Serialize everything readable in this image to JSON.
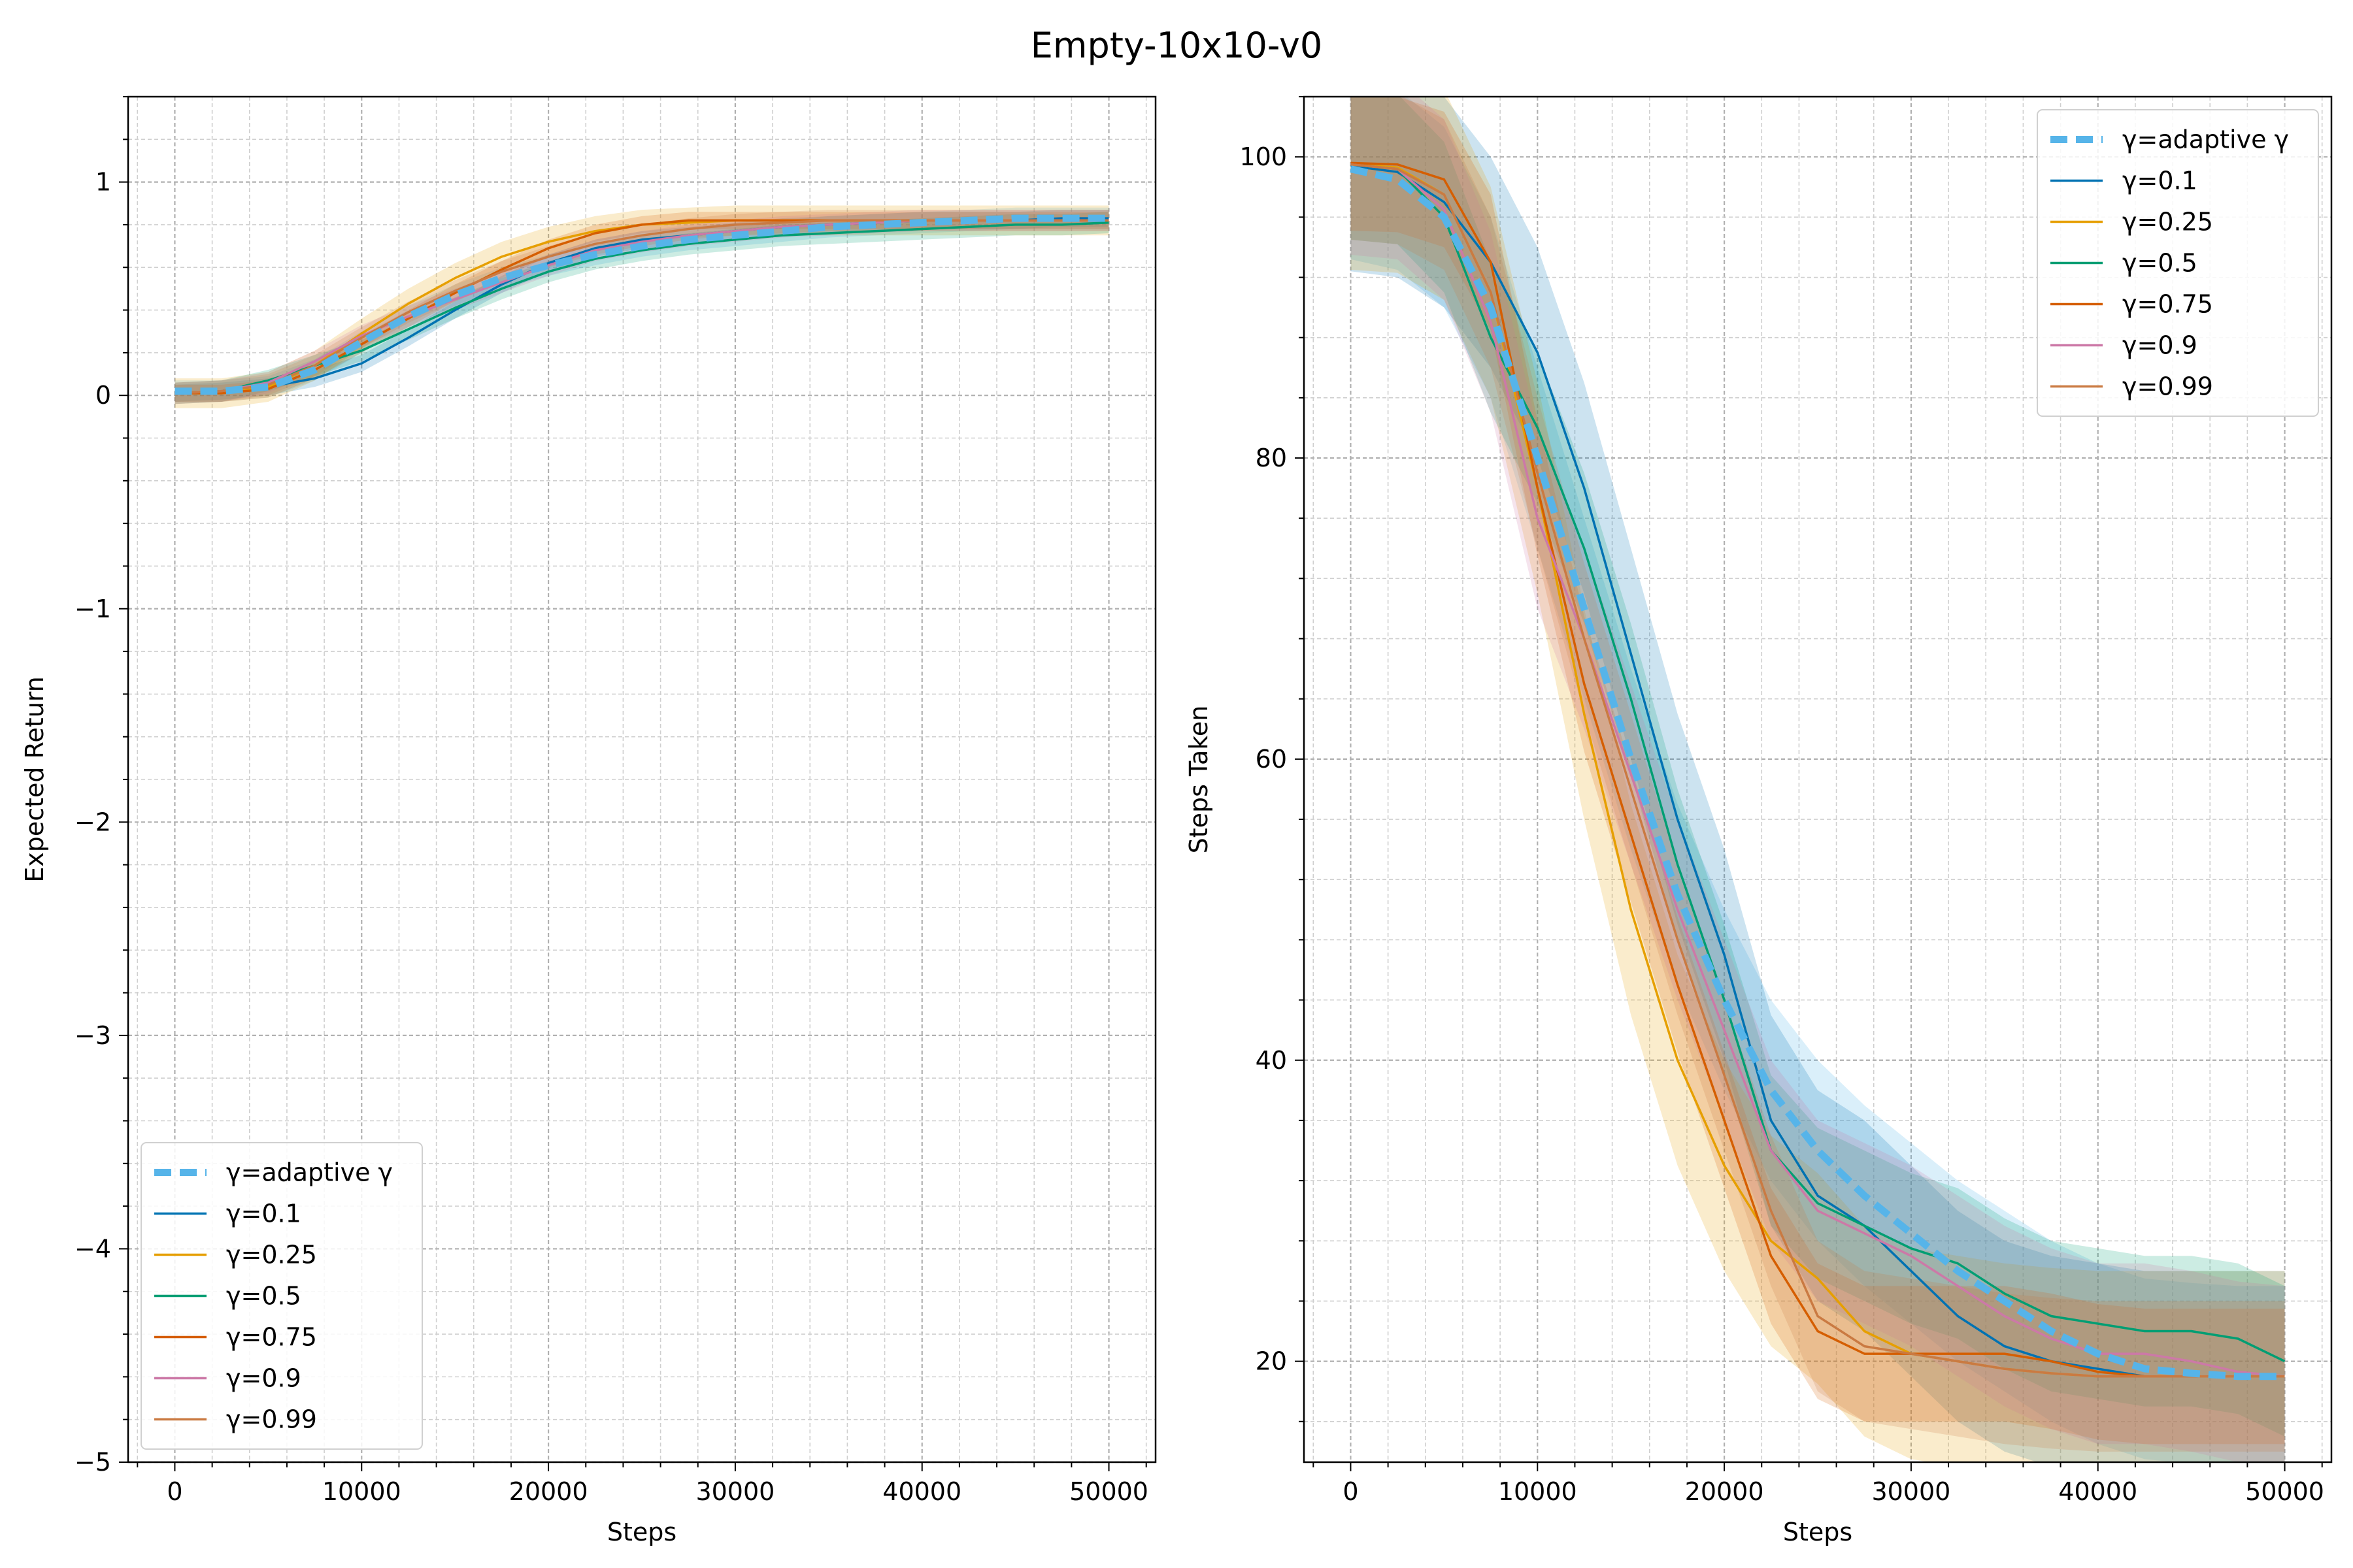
{
  "figure": {
    "title": "Empty-10x10-v0"
  },
  "chart_data": [
    {
      "type": "line",
      "title": "",
      "xlabel": "Steps",
      "ylabel": "Expected Return",
      "xlim": [
        -2500,
        52500
      ],
      "ylim": [
        -5,
        1.4
      ],
      "xticks": [
        0,
        10000,
        20000,
        30000,
        40000,
        50000
      ],
      "yticks": [
        -5,
        -4,
        -3,
        -2,
        -1,
        0,
        1
      ],
      "grid": true,
      "legend_placement": "lower-left",
      "x": [
        0,
        2500,
        5000,
        7500,
        10000,
        12500,
        15000,
        17500,
        20000,
        22500,
        25000,
        27500,
        30000,
        32500,
        35000,
        37500,
        40000,
        42500,
        45000,
        47500,
        50000
      ],
      "series": [
        {
          "name": "γ=adaptive γ",
          "color": "#56b4e9",
          "dashed": true,
          "values": [
            0.02,
            0.02,
            0.04,
            0.12,
            0.25,
            0.37,
            0.47,
            0.55,
            0.61,
            0.66,
            0.7,
            0.73,
            0.75,
            0.77,
            0.79,
            0.8,
            0.81,
            0.82,
            0.83,
            0.83,
            0.83
          ],
          "band": 0.05
        },
        {
          "name": "γ=0.1",
          "color": "#0072b2",
          "values": [
            0.01,
            0.02,
            0.04,
            0.08,
            0.15,
            0.27,
            0.4,
            0.52,
            0.62,
            0.69,
            0.73,
            0.75,
            0.77,
            0.79,
            0.8,
            0.81,
            0.82,
            0.82,
            0.82,
            0.83,
            0.83
          ],
          "band": 0.04
        },
        {
          "name": "γ=0.25",
          "color": "#e69f00",
          "values": [
            0.01,
            0.01,
            0.04,
            0.14,
            0.29,
            0.43,
            0.55,
            0.65,
            0.72,
            0.77,
            0.8,
            0.81,
            0.82,
            0.82,
            0.82,
            0.82,
            0.82,
            0.82,
            0.82,
            0.82,
            0.82
          ],
          "band": 0.07
        },
        {
          "name": "γ=0.5",
          "color": "#009e73",
          "values": [
            0.01,
            0.02,
            0.07,
            0.14,
            0.21,
            0.31,
            0.41,
            0.5,
            0.58,
            0.64,
            0.68,
            0.71,
            0.73,
            0.75,
            0.76,
            0.77,
            0.78,
            0.79,
            0.8,
            0.8,
            0.81
          ],
          "band": 0.05
        },
        {
          "name": "γ=0.75",
          "color": "#d55e00",
          "values": [
            0.01,
            0.01,
            0.03,
            0.12,
            0.24,
            0.36,
            0.48,
            0.59,
            0.69,
            0.76,
            0.8,
            0.82,
            0.82,
            0.82,
            0.82,
            0.82,
            0.82,
            0.82,
            0.82,
            0.82,
            0.82
          ],
          "band": 0.04
        },
        {
          "name": "γ=0.9",
          "color": "#cc79a7",
          "values": [
            0.01,
            0.02,
            0.06,
            0.16,
            0.28,
            0.37,
            0.45,
            0.53,
            0.61,
            0.68,
            0.72,
            0.75,
            0.77,
            0.79,
            0.8,
            0.81,
            0.82,
            0.82,
            0.82,
            0.82,
            0.82
          ],
          "band": 0.05
        },
        {
          "name": "γ=0.99",
          "color": "#ca7a42",
          "values": [
            0.01,
            0.02,
            0.05,
            0.14,
            0.27,
            0.39,
            0.49,
            0.58,
            0.65,
            0.71,
            0.75,
            0.78,
            0.8,
            0.81,
            0.82,
            0.82,
            0.82,
            0.82,
            0.82,
            0.82,
            0.82
          ],
          "band": 0.05
        }
      ]
    },
    {
      "type": "line",
      "title": "",
      "xlabel": "Steps",
      "ylabel": "Steps Taken",
      "xlim": [
        -2500,
        52500
      ],
      "ylim": [
        13.3,
        104
      ],
      "xticks": [
        0,
        10000,
        20000,
        30000,
        40000,
        50000
      ],
      "yticks": [
        20,
        40,
        60,
        80,
        100
      ],
      "grid": true,
      "legend_placement": "upper-right",
      "x": [
        0,
        2500,
        5000,
        7500,
        10000,
        12500,
        15000,
        17500,
        20000,
        22500,
        25000,
        27500,
        30000,
        32500,
        35000,
        37500,
        40000,
        42500,
        45000,
        47500,
        50000
      ],
      "series": [
        {
          "name": "γ=adaptive γ",
          "color": "#56b4e9",
          "dashed": true,
          "values": [
            99.2,
            98.5,
            96.0,
            90.0,
            80.0,
            70.0,
            60.0,
            51.0,
            44.0,
            38.0,
            34.0,
            31.0,
            28.5,
            26.0,
            24.0,
            22.0,
            20.5,
            19.5,
            19.2,
            19.0,
            19.0
          ],
          "band": 6.0
        },
        {
          "name": "γ=0.1",
          "color": "#0072b2",
          "values": [
            99.4,
            99.0,
            97.0,
            93.0,
            87.0,
            78.0,
            67.0,
            56.0,
            47.0,
            36.0,
            31.0,
            29.0,
            26.0,
            23.0,
            21.0,
            20.0,
            19.5,
            19.0,
            19.0,
            19.0,
            19.0
          ],
          "band": 7.0
        },
        {
          "name": "γ=0.25",
          "color": "#e69f00",
          "values": [
            99.5,
            99.3,
            97.5,
            91.0,
            78.0,
            63.0,
            50.0,
            40.0,
            33.0,
            28.0,
            25.5,
            22.0,
            20.5,
            20.0,
            19.5,
            19.2,
            19.0,
            19.0,
            19.0,
            19.0,
            19.0
          ],
          "band": 7.0
        },
        {
          "name": "γ=0.5",
          "color": "#009e73",
          "values": [
            99.5,
            99.2,
            96.0,
            88.0,
            82.0,
            74.0,
            64.0,
            53.0,
            44.0,
            34.0,
            30.5,
            29.0,
            27.5,
            26.5,
            24.5,
            23.0,
            22.5,
            22.0,
            22.0,
            21.5,
            20.0
          ],
          "band": 5.0
        },
        {
          "name": "γ=0.75",
          "color": "#d55e00",
          "values": [
            99.6,
            99.5,
            98.5,
            93.0,
            78.0,
            65.0,
            55.0,
            45.0,
            36.0,
            27.0,
            22.0,
            20.5,
            20.5,
            20.5,
            20.5,
            20.0,
            19.3,
            19.0,
            19.0,
            19.0,
            19.0
          ],
          "band": 4.5
        },
        {
          "name": "γ=0.9",
          "color": "#cc79a7",
          "values": [
            99.5,
            99.2,
            96.5,
            89.0,
            76.0,
            68.0,
            59.0,
            50.0,
            42.0,
            34.0,
            30.0,
            28.5,
            27.0,
            25.0,
            23.0,
            21.5,
            20.5,
            20.5,
            20.0,
            19.3,
            19.0
          ],
          "band": 6.0
        },
        {
          "name": "γ=0.99",
          "color": "#ca7a42",
          "values": [
            99.5,
            99.2,
            97.5,
            91.0,
            79.0,
            68.0,
            58.0,
            48.0,
            39.0,
            30.0,
            23.0,
            21.0,
            20.5,
            20.0,
            19.5,
            19.2,
            19.0,
            19.0,
            19.0,
            19.0,
            19.0
          ],
          "band": 5.0
        }
      ]
    }
  ]
}
